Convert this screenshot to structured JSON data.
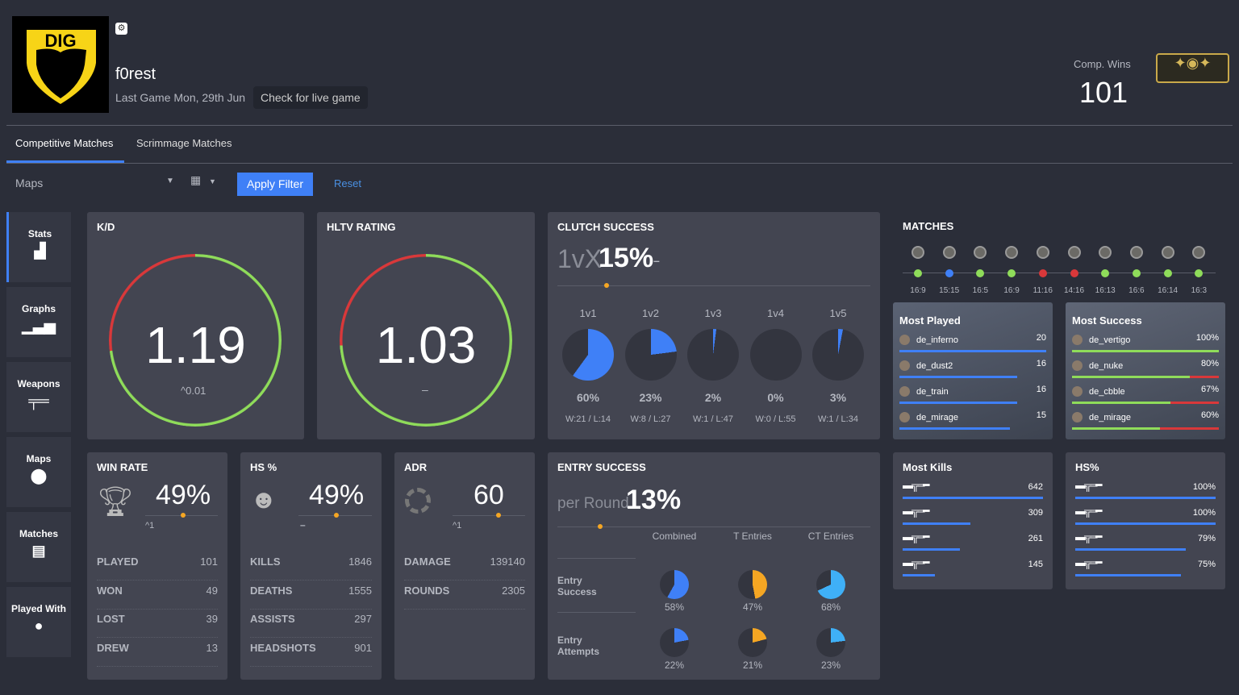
{
  "header": {
    "team_logo_text": "DIG",
    "player": "f0rest",
    "last_game": "Last Game Mon, 29th Jun",
    "live_button": "Check for live game",
    "comp_wins_label": "Comp. Wins",
    "comp_wins": "101"
  },
  "tabs": [
    "Competitive Matches",
    "Scrimmage Matches"
  ],
  "filters": {
    "maps_placeholder": "Maps",
    "apply": "Apply Filter",
    "reset": "Reset"
  },
  "sidebar": [
    {
      "label": "Stats",
      "icon": "bar-chart-icon"
    },
    {
      "label": "Graphs",
      "icon": "signal-bars-icon"
    },
    {
      "label": "Weapons",
      "icon": "rifle-icon"
    },
    {
      "label": "Maps",
      "icon": "map-pin-icon"
    },
    {
      "label": "Matches",
      "icon": "list-icon"
    },
    {
      "label": "Played With",
      "icon": "user-icon"
    }
  ],
  "kd": {
    "title": "K/D",
    "value": "1.19",
    "delta": "0.01",
    "fraction": 0.73
  },
  "hltv": {
    "title": "HLTV RATING",
    "value": "1.03",
    "delta": "–",
    "fraction": 0.74
  },
  "clutch": {
    "title": "CLUTCH SUCCESS",
    "prefix": "1vX",
    "value": "15%",
    "trend": "–",
    "items": [
      {
        "label": "1v1",
        "pct": 60,
        "pct_text": "60%",
        "wl": "W:21 / L:14"
      },
      {
        "label": "1v2",
        "pct": 23,
        "pct_text": "23%",
        "wl": "W:8 / L:27"
      },
      {
        "label": "1v3",
        "pct": 2,
        "pct_text": "2%",
        "wl": "W:1 / L:47"
      },
      {
        "label": "1v4",
        "pct": 0,
        "pct_text": "0%",
        "wl": "W:0 / L:55"
      },
      {
        "label": "1v5",
        "pct": 3,
        "pct_text": "3%",
        "wl": "W:1 / L:34"
      }
    ]
  },
  "matches": {
    "title": "MATCHES",
    "items": [
      {
        "score": "16:9",
        "result": "win"
      },
      {
        "score": "15:15",
        "result": "draw"
      },
      {
        "score": "16:5",
        "result": "win"
      },
      {
        "score": "16:9",
        "result": "win"
      },
      {
        "score": "11:16",
        "result": "loss"
      },
      {
        "score": "14:16",
        "result": "loss"
      },
      {
        "score": "16:13",
        "result": "win"
      },
      {
        "score": "16:6",
        "result": "win"
      },
      {
        "score": "16:14",
        "result": "win"
      },
      {
        "score": "16:3",
        "result": "win"
      }
    ]
  },
  "most_played": {
    "title": "Most Played",
    "items": [
      {
        "map": "de_inferno",
        "count": "20",
        "frac": 1
      },
      {
        "map": "de_dust2",
        "count": "16",
        "frac": 0.8
      },
      {
        "map": "de_train",
        "count": "16",
        "frac": 0.8
      },
      {
        "map": "de_mirage",
        "count": "15",
        "frac": 0.75
      }
    ]
  },
  "most_success": {
    "title": "Most Success",
    "items": [
      {
        "map": "de_vertigo",
        "pct": "100%",
        "frac": 1
      },
      {
        "map": "de_nuke",
        "pct": "80%",
        "frac": 0.8
      },
      {
        "map": "de_cbble",
        "pct": "67%",
        "frac": 0.67
      },
      {
        "map": "de_mirage",
        "pct": "60%",
        "frac": 0.6
      }
    ]
  },
  "win_rate": {
    "title": "WIN RATE",
    "value": "49%",
    "delta": "1",
    "rows": [
      [
        "PLAYED",
        "101"
      ],
      [
        "WON",
        "49"
      ],
      [
        "LOST",
        "39"
      ],
      [
        "DREW",
        "13"
      ]
    ]
  },
  "hs": {
    "title": "HS %",
    "value": "49%",
    "delta": "–",
    "rows": [
      [
        "KILLS",
        "1846"
      ],
      [
        "DEATHS",
        "1555"
      ],
      [
        "ASSISTS",
        "297"
      ],
      [
        "HEADSHOTS",
        "901"
      ]
    ]
  },
  "adr": {
    "title": "ADR",
    "value": "60",
    "delta": "1",
    "rows": [
      [
        "DAMAGE",
        "139140"
      ],
      [
        "ROUNDS",
        "2305"
      ]
    ]
  },
  "entry": {
    "title": "ENTRY SUCCESS",
    "prefix": "per Round",
    "value": "13%",
    "columns": [
      "Combined",
      "T Entries",
      "CT Entries"
    ],
    "rows": [
      {
        "label": "Entry Success",
        "values": [
          58,
          47,
          68
        ],
        "texts": [
          "58%",
          "47%",
          "68%"
        ]
      },
      {
        "label": "Entry Attempts",
        "values": [
          22,
          21,
          23
        ],
        "texts": [
          "22%",
          "21%",
          "23%"
        ]
      }
    ]
  },
  "most_kills": {
    "title": "Most Kills",
    "items": [
      {
        "weapon": "ak47-icon",
        "value": "642",
        "frac": 1
      },
      {
        "weapon": "m4a1s-icon",
        "value": "309",
        "frac": 0.48
      },
      {
        "weapon": "awp-icon",
        "value": "261",
        "frac": 0.41
      },
      {
        "weapon": "m4a4-icon",
        "value": "145",
        "frac": 0.23
      }
    ]
  },
  "hs_weapons": {
    "title": "HS%",
    "items": [
      {
        "weapon": "m4-icon",
        "value": "100%",
        "frac": 1
      },
      {
        "weapon": "mp9-icon",
        "value": "100%",
        "frac": 1
      },
      {
        "weapon": "usp-icon",
        "value": "79%",
        "frac": 0.79
      },
      {
        "weapon": "glock-icon",
        "value": "75%",
        "frac": 0.75
      }
    ]
  },
  "colors": {
    "accent": "#3f80f7",
    "win": "#8fdc5a",
    "loss": "#d9383a",
    "orange": "#f5a623",
    "cyan": "#3fb0f7"
  }
}
